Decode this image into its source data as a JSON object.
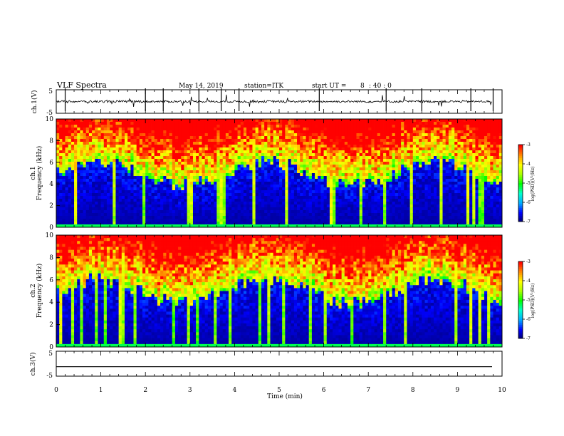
{
  "header": {
    "title": "VLF Spectra",
    "date": "May 14, 2019",
    "station": "station=ITK",
    "start_prefix": "start  UT =",
    "start_hour": "8",
    "start_sep": ": 40 : 0"
  },
  "colors": {
    "colormap": [
      "#000066",
      "#0000ff",
      "#00aaff",
      "#00ffcc",
      "#00ff00",
      "#aaff00",
      "#ffff00",
      "#ff8800",
      "#ff0000",
      "#ffffff"
    ],
    "trace": "#000000",
    "background": "#ffffff"
  },
  "chart_data": [
    {
      "type": "line",
      "panel": "ch1-waveform",
      "ylabel": "ch.1(V)",
      "ylim": [
        -5,
        5
      ],
      "yticks": [
        "5",
        "-5"
      ],
      "xlim": [
        0,
        10
      ],
      "description_values": {
        "baseline": 0,
        "typical_noise": 0.5,
        "spike_max": 5
      }
    },
    {
      "type": "heatmap",
      "panel": "ch1-spectrogram",
      "ylabel_line1": "ch.1",
      "ylabel_line2": "Frequency  (kHz)",
      "ylim": [
        0,
        10
      ],
      "yticks": [
        "0",
        "2",
        "4",
        "6",
        "8",
        "10"
      ],
      "xlim": [
        0,
        10
      ],
      "colorbar": {
        "label": "log(PSD)(V²/Hz)",
        "ticks": [
          "-3",
          "-4",
          "-5",
          "-6",
          "-7"
        ],
        "range": [
          -7,
          -3
        ]
      }
    },
    {
      "type": "heatmap",
      "panel": "ch2-spectrogram",
      "ylabel_line1": "ch.2",
      "ylabel_line2": "Frequency  (kHz)",
      "ylim": [
        0,
        10
      ],
      "yticks": [
        "0",
        "2",
        "4",
        "6",
        "8",
        "10"
      ],
      "xlim": [
        0,
        10
      ],
      "colorbar": {
        "label": "log(PSD)(V²/Hz)",
        "ticks": [
          "-3",
          "-4",
          "-5",
          "-6",
          "-7"
        ],
        "range": [
          -7,
          -3
        ]
      }
    },
    {
      "type": "line",
      "panel": "ch3-waveform",
      "ylabel": "ch.3(V)",
      "ylim": [
        -5,
        5
      ],
      "yticks": [
        "5",
        "-5"
      ],
      "xlim": [
        0,
        10
      ],
      "description_values": {
        "baseline": -1.2
      }
    }
  ],
  "xaxis": {
    "label": "Time  (min)",
    "ticks": [
      "0",
      "1",
      "2",
      "3",
      "4",
      "5",
      "6",
      "7",
      "8",
      "9",
      "10"
    ]
  }
}
